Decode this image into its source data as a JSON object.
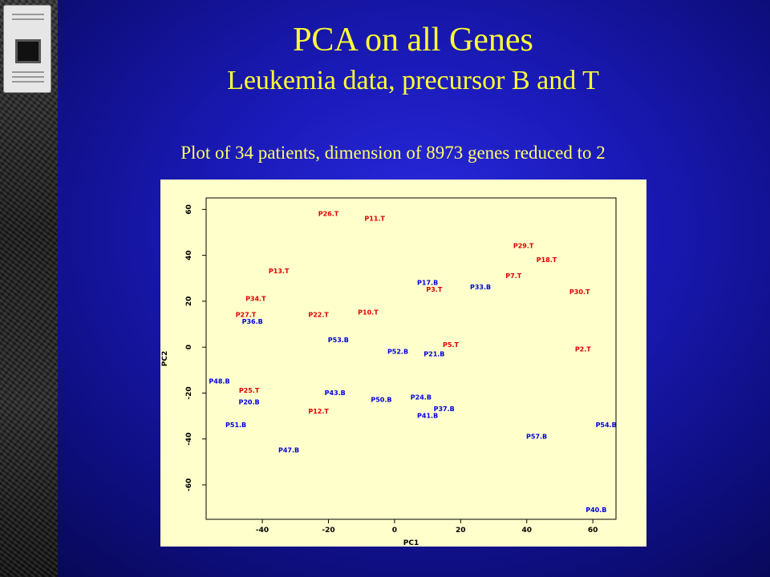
{
  "slide": {
    "title": "PCA on all Genes",
    "subtitle": "Leukemia data, precursor B and T",
    "caption": "Plot of 34 patients, dimension of 8973 genes reduced to 2"
  },
  "colors": {
    "background": "#1a1ab8",
    "title_text": "#ffff33",
    "plot_background": "#ffffcc",
    "group_T": "#dd0000",
    "group_B": "#0000dd"
  },
  "chart_data": {
    "type": "scatter",
    "xlabel": "PC1",
    "ylabel": "PC2",
    "xlim": [
      -57,
      67
    ],
    "ylim": [
      -75,
      65
    ],
    "xticks": [
      -40,
      -20,
      0,
      20,
      40,
      60
    ],
    "yticks": [
      60,
      40,
      20,
      0,
      -20,
      -40,
      -60
    ],
    "grid": false,
    "points": [
      {
        "label": "P26.T",
        "x": -20,
        "y": 58,
        "group": "T"
      },
      {
        "label": "P11.T",
        "x": -6,
        "y": 56,
        "group": "T"
      },
      {
        "label": "P29.T",
        "x": 39,
        "y": 44,
        "group": "T"
      },
      {
        "label": "P18.T",
        "x": 46,
        "y": 38,
        "group": "T"
      },
      {
        "label": "P13.T",
        "x": -35,
        "y": 33,
        "group": "T"
      },
      {
        "label": "P7.T",
        "x": 36,
        "y": 31,
        "group": "T"
      },
      {
        "label": "P17.B",
        "x": 10,
        "y": 28,
        "group": "B"
      },
      {
        "label": "P3.T",
        "x": 12,
        "y": 25,
        "group": "T"
      },
      {
        "label": "P33.B",
        "x": 26,
        "y": 26,
        "group": "B"
      },
      {
        "label": "P30.T",
        "x": 56,
        "y": 24,
        "group": "T"
      },
      {
        "label": "P34.T",
        "x": -42,
        "y": 21,
        "group": "T"
      },
      {
        "label": "P27.T",
        "x": -45,
        "y": 14,
        "group": "T"
      },
      {
        "label": "P22.T",
        "x": -23,
        "y": 14,
        "group": "T"
      },
      {
        "label": "P10.T",
        "x": -8,
        "y": 15,
        "group": "T"
      },
      {
        "label": "P36.B",
        "x": -43,
        "y": 11,
        "group": "B"
      },
      {
        "label": "P53.B",
        "x": -17,
        "y": 3,
        "group": "B"
      },
      {
        "label": "P5.T",
        "x": 17,
        "y": 1,
        "group": "T"
      },
      {
        "label": "P2.T",
        "x": 57,
        "y": -1,
        "group": "T"
      },
      {
        "label": "P52.B",
        "x": 1,
        "y": -2,
        "group": "B"
      },
      {
        "label": "P21.B",
        "x": 12,
        "y": -3,
        "group": "B"
      },
      {
        "label": "P48.B",
        "x": -53,
        "y": -15,
        "group": "B"
      },
      {
        "label": "P25.T",
        "x": -44,
        "y": -19,
        "group": "T"
      },
      {
        "label": "P43.B",
        "x": -18,
        "y": -20,
        "group": "B"
      },
      {
        "label": "P24.B",
        "x": 8,
        "y": -22,
        "group": "B"
      },
      {
        "label": "P20.B",
        "x": -44,
        "y": -24,
        "group": "B"
      },
      {
        "label": "P50.B",
        "x": -4,
        "y": -23,
        "group": "B"
      },
      {
        "label": "P37.B",
        "x": 15,
        "y": -27,
        "group": "B"
      },
      {
        "label": "P12.T",
        "x": -23,
        "y": -28,
        "group": "T"
      },
      {
        "label": "P41.B",
        "x": 10,
        "y": -30,
        "group": "B"
      },
      {
        "label": "P51.B",
        "x": -48,
        "y": -34,
        "group": "B"
      },
      {
        "label": "P54.B",
        "x": 64,
        "y": -34,
        "group": "B"
      },
      {
        "label": "P57.B",
        "x": 43,
        "y": -39,
        "group": "B"
      },
      {
        "label": "P47.B",
        "x": -32,
        "y": -45,
        "group": "B"
      },
      {
        "label": "P40.B",
        "x": 61,
        "y": -71,
        "group": "B"
      }
    ]
  }
}
